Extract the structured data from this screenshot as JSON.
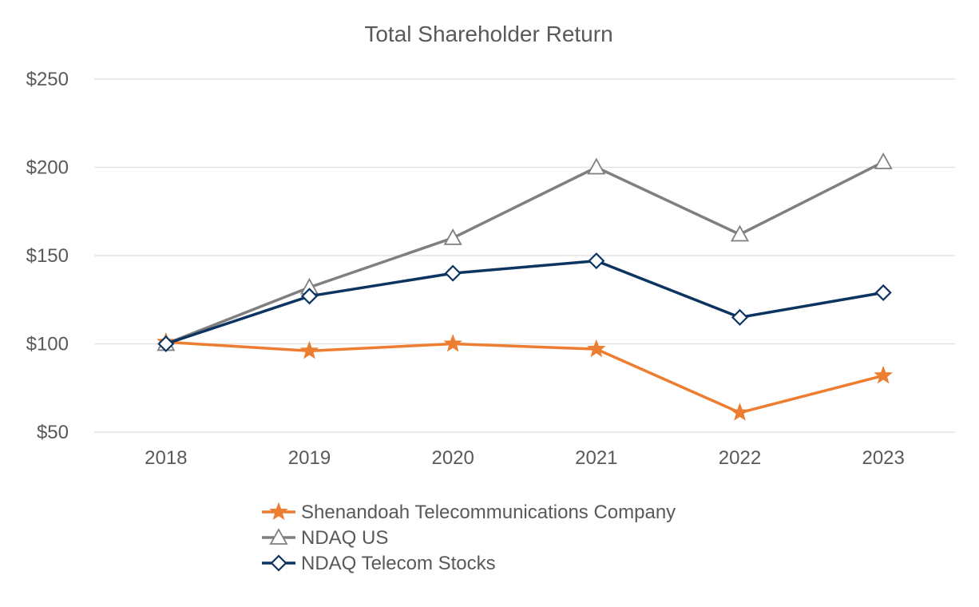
{
  "chart_data": {
    "type": "line",
    "title": "Total Shareholder Return",
    "xlabel": "",
    "ylabel": "",
    "categories": [
      "2018",
      "2019",
      "2020",
      "2021",
      "2022",
      "2023"
    ],
    "ylim": [
      50,
      250
    ],
    "yticks": [
      50,
      100,
      150,
      200,
      250
    ],
    "ytick_labels": [
      "$50",
      "$100",
      "$150",
      "$200",
      "$250"
    ],
    "grid": true,
    "legend_position": "bottom-center",
    "series": [
      {
        "name": "Shenandoah Telecommunications Company",
        "color": "#ED7D31",
        "marker": "star",
        "values": [
          101,
          96,
          100,
          97,
          61,
          82
        ]
      },
      {
        "name": "NDAQ US",
        "color": "#7F7F7F",
        "marker": "triangle",
        "values": [
          100,
          132,
          160,
          200,
          162,
          203
        ]
      },
      {
        "name": "NDAQ Telecom Stocks",
        "color": "#0B3460",
        "marker": "diamond",
        "values": [
          100,
          127,
          140,
          147,
          115,
          129
        ]
      }
    ]
  }
}
